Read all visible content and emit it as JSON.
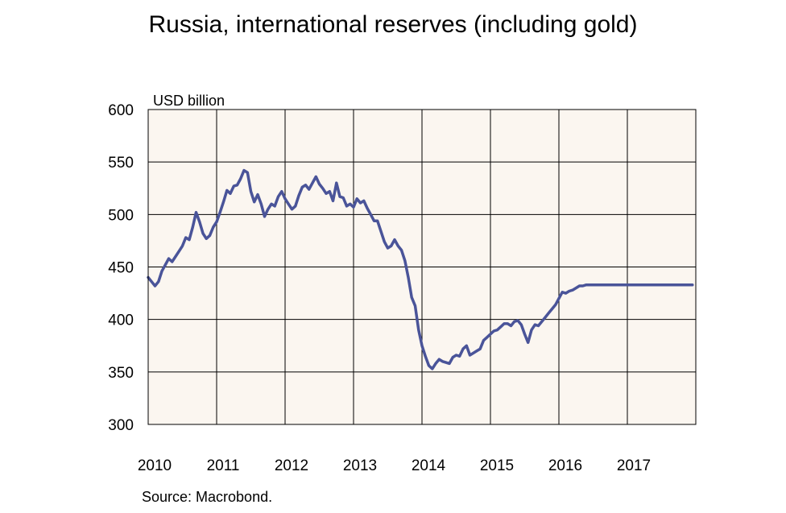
{
  "chart_data": {
    "type": "line",
    "title": "Russia, international reserves (including gold)",
    "ylabel": "USD billion",
    "xlabel": "",
    "xlim": [
      2010,
      2018
    ],
    "ylim": [
      300,
      600
    ],
    "grid": true,
    "plot_background": "#fbf6f0",
    "line_color": "#4a5499",
    "yticks": [
      "300",
      "350",
      "400",
      "450",
      "500",
      "550",
      "600"
    ],
    "xticks": [
      "2010",
      "2011",
      "2012",
      "2013",
      "2014",
      "2015",
      "2016",
      "2017"
    ],
    "series": [
      {
        "name": "",
        "x": [
          2010.0,
          2010.05,
          2010.1,
          2010.15,
          2010.2,
          2010.25,
          2010.3,
          2010.35,
          2010.4,
          2010.45,
          2010.5,
          2010.55,
          2010.6,
          2010.65,
          2010.7,
          2010.75,
          2010.8,
          2010.85,
          2010.9,
          2010.95,
          2011.0,
          2011.05,
          2011.1,
          2011.15,
          2011.2,
          2011.25,
          2011.3,
          2011.35,
          2011.4,
          2011.45,
          2011.5,
          2011.55,
          2011.6,
          2011.65,
          2011.7,
          2011.75,
          2011.8,
          2011.85,
          2011.9,
          2011.95,
          2012.0,
          2012.05,
          2012.1,
          2012.15,
          2012.2,
          2012.25,
          2012.3,
          2012.35,
          2012.4,
          2012.45,
          2012.5,
          2012.55,
          2012.6,
          2012.65,
          2012.7,
          2012.75,
          2012.8,
          2012.85,
          2012.9,
          2012.95,
          2013.0,
          2013.05,
          2013.1,
          2013.15,
          2013.2,
          2013.25,
          2013.3,
          2013.35,
          2013.4,
          2013.45,
          2013.5,
          2013.55,
          2013.6,
          2013.65,
          2013.7,
          2013.75,
          2013.8,
          2013.85,
          2013.9,
          2013.95,
          2014.0,
          2014.05,
          2014.1,
          2014.15,
          2014.2,
          2014.25,
          2014.3,
          2014.35,
          2014.4,
          2014.45,
          2014.5,
          2014.55,
          2014.6,
          2014.65,
          2014.7,
          2014.75,
          2014.8,
          2014.85,
          2014.9,
          2014.95,
          2015.0,
          2015.05,
          2015.1,
          2015.15,
          2015.2,
          2015.25,
          2015.3,
          2015.35,
          2015.4,
          2015.45,
          2015.5,
          2015.55,
          2015.6,
          2015.65,
          2015.7,
          2015.75,
          2015.8,
          2015.85,
          2015.9,
          2015.95,
          2016.0,
          2016.05,
          2016.1,
          2016.15,
          2016.2,
          2016.25,
          2016.3,
          2016.35,
          2016.4,
          2016.45,
          2016.5,
          2016.55,
          2016.6,
          2016.65,
          2016.7,
          2016.75,
          2016.8,
          2016.85,
          2016.9,
          2016.95,
          2017.0,
          2017.05,
          2017.1,
          2017.15,
          2017.2,
          2017.25,
          2017.3,
          2017.35,
          2017.4,
          2017.45,
          2017.5,
          2017.55,
          2017.6,
          2017.65,
          2017.7,
          2017.75,
          2017.8,
          2017.85,
          2017.9,
          2017.95
        ],
        "values": [
          440,
          436,
          432,
          436,
          446,
          452,
          458,
          455,
          460,
          465,
          470,
          478,
          476,
          488,
          502,
          493,
          482,
          477,
          480,
          488,
          493,
          502,
          512,
          523,
          520,
          527,
          528,
          534,
          542,
          540,
          522,
          512,
          519,
          510,
          498,
          505,
          510,
          508,
          517,
          522,
          515,
          510,
          505,
          508,
          518,
          526,
          528,
          524,
          530,
          536,
          529,
          525,
          520,
          522,
          513,
          530,
          517,
          516,
          508,
          510,
          507,
          515,
          511,
          513,
          506,
          500,
          494,
          494,
          484,
          474,
          468,
          470,
          476,
          470,
          466,
          456,
          440,
          421,
          413,
          390,
          375,
          365,
          356,
          353,
          358,
          362,
          360,
          359,
          358,
          364,
          366,
          365,
          372,
          375,
          366,
          368,
          370,
          372,
          380,
          383,
          386,
          389,
          390,
          393,
          396,
          396,
          394,
          398,
          399,
          395,
          386,
          378,
          390,
          395,
          394,
          398,
          402,
          406,
          410,
          414,
          420,
          426,
          425,
          427,
          428,
          430,
          432,
          432,
          433,
          433,
          433,
          433,
          433,
          433,
          433,
          433,
          433,
          433,
          433,
          433,
          433,
          433,
          433,
          433,
          433,
          433,
          433,
          433,
          433,
          433,
          433,
          433,
          433,
          433,
          433,
          433,
          433,
          433,
          433,
          433
        ]
      }
    ]
  },
  "footer": {
    "source": "Source: Macrobond."
  }
}
